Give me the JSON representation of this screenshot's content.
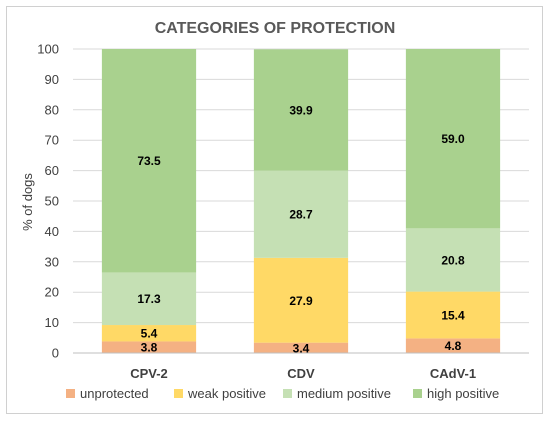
{
  "chart_data": {
    "type": "bar",
    "stacked": true,
    "title": "CATEGORIES OF PROTECTION",
    "xlabel": "",
    "ylabel": "% of dogs",
    "ylim": [
      0,
      100
    ],
    "yticks": [
      0,
      10,
      20,
      30,
      40,
      50,
      60,
      70,
      80,
      90,
      100
    ],
    "grid": true,
    "legend": "bottom",
    "categories": [
      "CPV-2",
      "CDV",
      "CAdV-1"
    ],
    "series": [
      {
        "name": "unprotected",
        "color": "#F4B183",
        "values": [
          3.8,
          3.4,
          4.8
        ],
        "labels": [
          "3.8",
          "3.4",
          "4.8"
        ]
      },
      {
        "name": "weak positive",
        "color": "#FFD966",
        "values": [
          5.4,
          27.9,
          15.4
        ],
        "labels": [
          "5.4",
          "27.9",
          "15.4"
        ]
      },
      {
        "name": "medium positive",
        "color": "#C5E0B4",
        "values": [
          17.3,
          28.7,
          20.8
        ],
        "labels": [
          "17.3",
          "28.7",
          "20.8"
        ]
      },
      {
        "name": "high positive",
        "color": "#A9D18E",
        "values": [
          73.5,
          39.9,
          59.0
        ],
        "labels": [
          "73.5",
          "39.9",
          "59.0"
        ]
      }
    ]
  }
}
